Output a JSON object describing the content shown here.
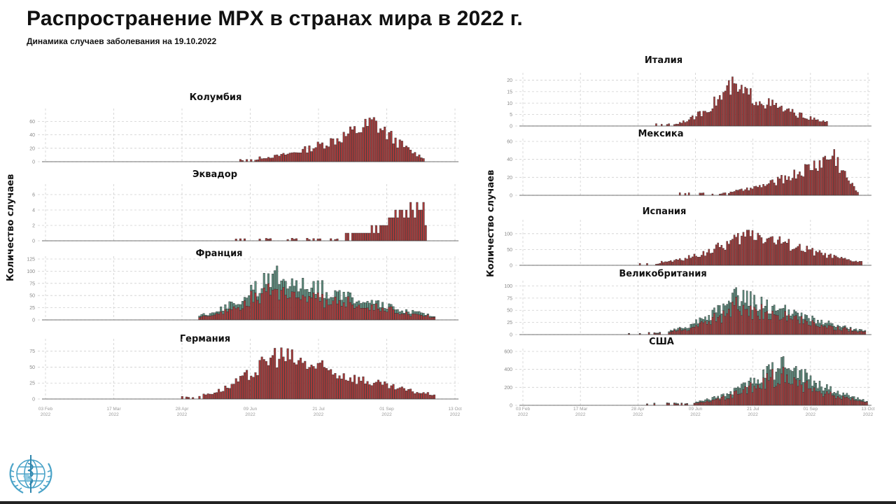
{
  "header": {
    "title": "Распространение MPX в странах мира в 2022 г.",
    "subtitle": "Динамика случаев заболевания на 19.10.2022"
  },
  "y_axis_label": "Количество случаев",
  "x_axis": {
    "ticks": [
      {
        "label": "03 Feb",
        "year": "2022"
      },
      {
        "label": "17 Mar",
        "year": "2022"
      },
      {
        "label": "28 Apr",
        "year": "2022"
      },
      {
        "label": "09 Jun",
        "year": "2022"
      },
      {
        "label": "21 Jul",
        "year": "2022"
      },
      {
        "label": "01 Sep",
        "year": "2022"
      },
      {
        "label": "13 Oct",
        "year": "2022"
      }
    ]
  },
  "colors": {
    "bar_primary": "#a63a3a",
    "bar_secondary": "#5f8f80",
    "bar_outline": "#2a2a2a",
    "grid": "#cfcfcf"
  },
  "logo": {
    "name": "WHO emblem"
  },
  "chart_data": [
    {
      "type": "bar",
      "title": "Колумбия",
      "ylabel": "Количество случаев",
      "yticks": [
        0,
        20,
        40,
        60
      ],
      "ylim": [
        0,
        75
      ],
      "x_start": "2022-02-03",
      "x_end": "2022-10-19",
      "shape": {
        "start": 0.52,
        "peak": 0.8,
        "end": 0.925,
        "max": 75,
        "sparse_from": 0.45
      },
      "stacked": false
    },
    {
      "type": "bar",
      "title": "Эквадор",
      "ylabel": "Количество случаев",
      "yticks": [
        0,
        2,
        4,
        6
      ],
      "ylim": [
        0,
        7
      ],
      "shape": {
        "start": 0.72,
        "peak": 0.92,
        "end": 0.93,
        "max": 7,
        "sparse_from": 0.45
      },
      "stacked": false
    },
    {
      "type": "bar",
      "title": "Франция",
      "ylabel": "Количество случаев",
      "yticks": [
        0,
        25,
        50,
        75,
        100,
        125
      ],
      "ylim": [
        0,
        125
      ],
      "shape": {
        "start": 0.37,
        "peak": 0.56,
        "end": 0.95,
        "max": 122,
        "sparse_from": 0.36
      },
      "stacked": true
    },
    {
      "type": "bar",
      "title": "Германия",
      "ylabel": "Количество случаев",
      "yticks": [
        0,
        25,
        50,
        75
      ],
      "ylim": [
        0,
        90
      ],
      "shape": {
        "start": 0.38,
        "peak": 0.56,
        "end": 0.95,
        "max": 90,
        "sparse_from": 0.33
      },
      "stacked": false
    },
    {
      "type": "bar",
      "title": "Италия",
      "ylabel": "Количество случаев",
      "yticks": [
        0,
        5,
        10,
        15,
        20
      ],
      "ylim": [
        0,
        22
      ],
      "shape": {
        "start": 0.45,
        "peak": 0.6,
        "end": 0.88,
        "max": 22,
        "sparse_from": 0.38
      },
      "stacked": false
    },
    {
      "type": "bar",
      "title": "Мексика",
      "ylabel": "Количество случаев",
      "yticks": [
        0,
        20,
        40,
        60
      ],
      "ylim": [
        0,
        60
      ],
      "shape": {
        "start": 0.6,
        "peak": 0.9,
        "end": 0.97,
        "max": 58,
        "sparse_from": 0.45
      },
      "stacked": false
    },
    {
      "type": "bar",
      "title": "Испания",
      "ylabel": "Количество случаев",
      "yticks": [
        0,
        50,
        100
      ],
      "ylim": [
        0,
        135
      ],
      "shape": {
        "start": 0.4,
        "peak": 0.66,
        "end": 0.98,
        "max": 135,
        "sparse_from": 0.33
      },
      "stacked": false
    },
    {
      "type": "bar",
      "title": "Великобритания",
      "ylabel": "Количество случаев",
      "yticks": [
        0,
        25,
        50,
        75,
        100
      ],
      "ylim": [
        0,
        105
      ],
      "shape": {
        "start": 0.42,
        "peak": 0.62,
        "end": 0.99,
        "max": 103,
        "sparse_from": 0.3
      },
      "stacked": true
    },
    {
      "type": "bar",
      "title": "США",
      "ylabel": "Количество случаев",
      "yticks": [
        0,
        200,
        400,
        600
      ],
      "ylim": [
        0,
        600
      ],
      "shape": {
        "start": 0.5,
        "peak": 0.75,
        "end": 0.995,
        "max": 590,
        "sparse_from": 0.35
      },
      "stacked": true
    }
  ]
}
